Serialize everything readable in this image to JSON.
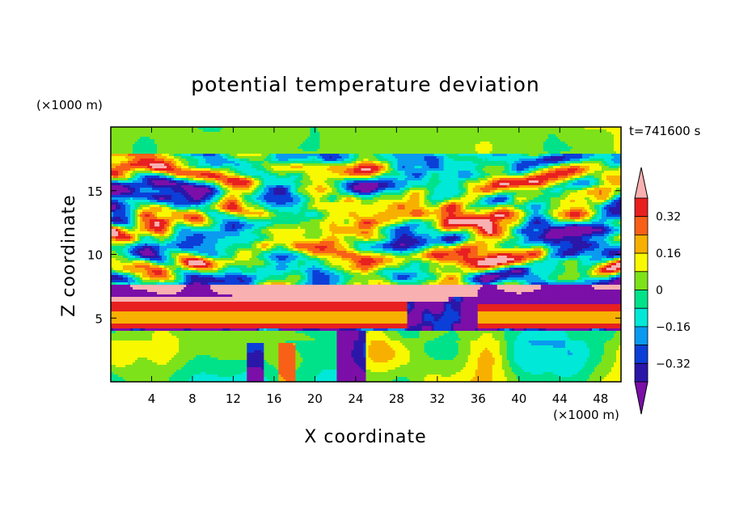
{
  "chart_data": {
    "type": "heatmap",
    "title": "potential temperature deviation",
    "xlabel": "X coordinate",
    "ylabel": "Z coordinate",
    "x_unit": "(×1000 m)",
    "y_unit": "(×1000 m)",
    "time_label": "t=741600 s",
    "xlim": [
      0,
      50
    ],
    "ylim": [
      0,
      20
    ],
    "x_ticks": [
      4,
      8,
      12,
      16,
      20,
      24,
      28,
      32,
      36,
      40,
      44,
      48
    ],
    "y_ticks": [
      5,
      10,
      15
    ],
    "colorbar": {
      "ticks": [
        0.32,
        0.16,
        0,
        -0.16,
        -0.32
      ],
      "tick_labels": [
        "0.32",
        "0.16",
        "0",
        "−0.16",
        "−0.32"
      ],
      "levels": [
        -0.4,
        -0.32,
        -0.24,
        -0.16,
        -0.08,
        0,
        0.08,
        0.16,
        0.24,
        0.32,
        0.4
      ],
      "colors": [
        "#7b0fa8",
        "#2a17a8",
        "#0c3fd8",
        "#0a9af0",
        "#00e8d8",
        "#00e28a",
        "#7ee21a",
        "#f8f800",
        "#f8b000",
        "#f86018",
        "#e82020",
        "#f8b0b0"
      ]
    },
    "layers": [
      {
        "z_range": [
          0,
          4
        ],
        "description": "lower turbulent layer, mostly near-zero values with plumes"
      },
      {
        "z_range": [
          4,
          7
        ],
        "description": "strong positive band with negative patches"
      },
      {
        "z_range": [
          7,
          18
        ],
        "description": "mixed positive/negative cells"
      },
      {
        "z_range": [
          18,
          20
        ],
        "description": "upper layer near zero"
      }
    ]
  }
}
